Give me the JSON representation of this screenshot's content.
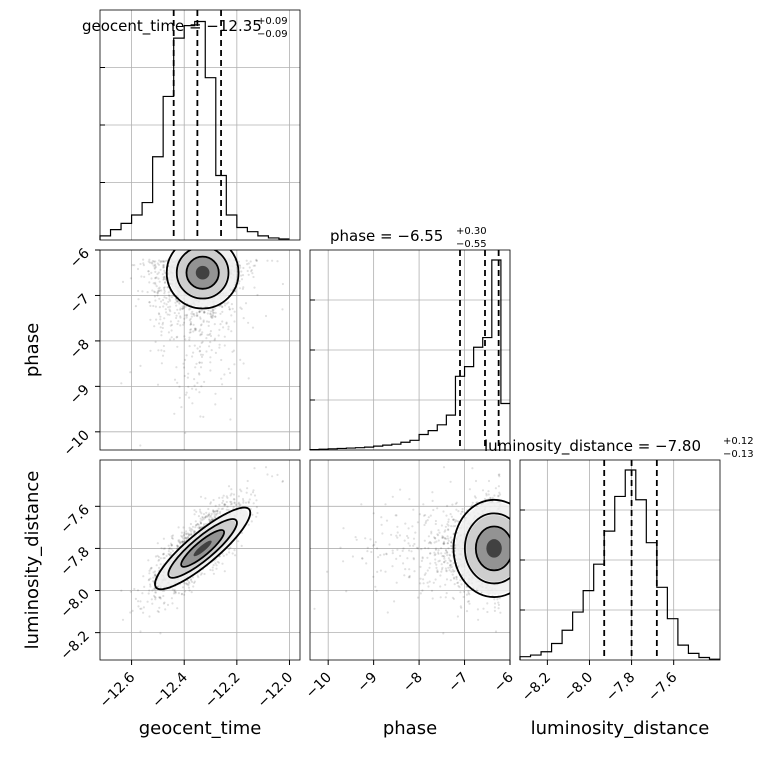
{
  "chart_data": {
    "type": "corner",
    "parameters": [
      "geocent_time",
      "phase",
      "luminosity_distance"
    ],
    "titles": [
      {
        "param": "geocent_time",
        "prefix": "geocent_time = ",
        "median": "−12.35",
        "plus": "+0.09",
        "minus": "−0.09"
      },
      {
        "param": "phase",
        "prefix": "phase = ",
        "median": "−6.55",
        "plus": "+0.30",
        "minus": "−0.55"
      },
      {
        "param": "luminosity_distance",
        "prefix": "luminosity_distance = ",
        "median": "−7.80",
        "plus": "+0.12",
        "minus": "−0.13"
      }
    ],
    "ranges": {
      "geocent_time": [
        -12.72,
        -11.96
      ],
      "phase": [
        -10.4,
        -6.0
      ],
      "luminosity_distance": [
        -8.33,
        -7.38
      ]
    },
    "ticks": {
      "geocent_time": {
        "values": [
          -12.6,
          -12.4,
          -12.2,
          -12.0
        ],
        "labels": [
          "−12.6",
          "−12.4",
          "−12.2",
          "−12.0"
        ]
      },
      "phase": {
        "values": [
          -10,
          -9,
          -8,
          -7,
          -6
        ],
        "labels": [
          "−10",
          "−9",
          "−8",
          "−7",
          "−6"
        ]
      },
      "luminosity_distance": {
        "values": [
          -8.2,
          -8.0,
          -7.8,
          -7.6
        ],
        "labels": [
          "−8.2",
          "−8.0",
          "−7.8",
          "−7.6"
        ]
      }
    },
    "quantiles": {
      "geocent_time": [
        -12.44,
        -12.35,
        -12.26
      ],
      "phase": [
        -7.1,
        -6.55,
        -6.25
      ],
      "luminosity_distance": [
        -7.93,
        -7.8,
        -7.68
      ]
    },
    "histograms": {
      "geocent_time": {
        "edges": [
          -12.72,
          -12.68,
          -12.64,
          -12.6,
          -12.56,
          -12.52,
          -12.48,
          -12.44,
          -12.4,
          -12.36,
          -12.32,
          -12.28,
          -12.24,
          -12.2,
          -12.16,
          -12.12,
          -12.08,
          -12.04,
          -12.0
        ],
        "counts": [
          0.02,
          0.05,
          0.08,
          0.12,
          0.18,
          0.4,
          0.69,
          0.97,
          1.03,
          1.05,
          0.78,
          0.31,
          0.12,
          0.06,
          0.04,
          0.02,
          0.01,
          0.005
        ]
      },
      "phase": {
        "edges": [
          -10.4,
          -10.2,
          -10.0,
          -9.8,
          -9.6,
          -9.4,
          -9.2,
          -9.0,
          -8.8,
          -8.6,
          -8.4,
          -8.2,
          -8.0,
          -7.8,
          -7.6,
          -7.4,
          -7.2,
          -7.0,
          -6.8,
          -6.6,
          -6.4,
          -6.2,
          -6.0
        ],
        "counts": [
          0.002,
          0.004,
          0.006,
          0.008,
          0.01,
          0.012,
          0.015,
          0.02,
          0.025,
          0.03,
          0.04,
          0.05,
          0.08,
          0.1,
          0.13,
          0.18,
          0.38,
          0.43,
          0.53,
          0.58,
          0.98,
          0.24
        ]
      },
      "luminosity_distance": {
        "edges": [
          -8.33,
          -8.28,
          -8.23,
          -8.18,
          -8.13,
          -8.08,
          -8.03,
          -7.98,
          -7.93,
          -7.88,
          -7.83,
          -7.78,
          -7.73,
          -7.68,
          -7.63,
          -7.58,
          -7.53,
          -7.48,
          -7.43,
          -7.38
        ],
        "counts": [
          0.02,
          0.03,
          0.05,
          0.1,
          0.18,
          0.29,
          0.42,
          0.58,
          0.78,
          0.99,
          1.15,
          0.97,
          0.71,
          0.44,
          0.25,
          0.09,
          0.04,
          0.015,
          0.005
        ]
      }
    }
  }
}
